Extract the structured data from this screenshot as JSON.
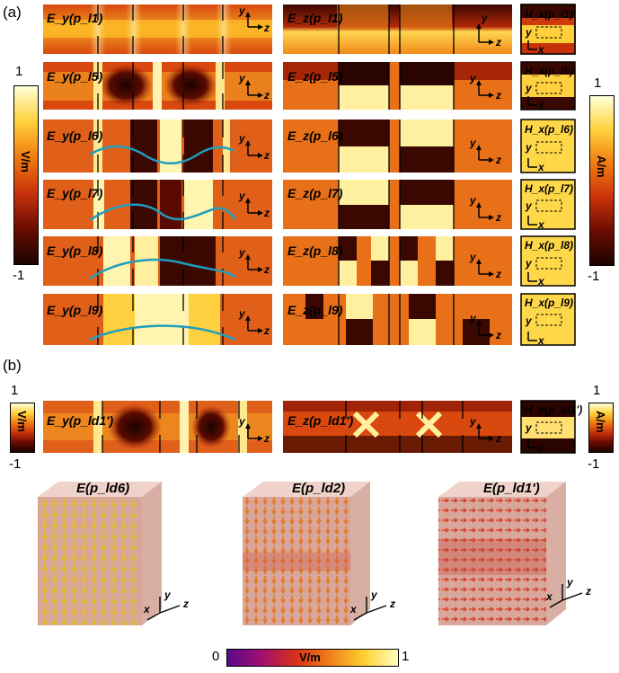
{
  "panels": {
    "a": "(a)",
    "b": "(b)"
  },
  "colorbar_left": {
    "max": "1",
    "min": "-1",
    "unit": "V/m"
  },
  "colorbar_right": {
    "max": "1",
    "min": "-1",
    "unit": "A/m"
  },
  "colorbar_b_left": {
    "max": "1",
    "min": "-1",
    "unit": "V/m"
  },
  "colorbar_b_right": {
    "max": "1",
    "min": "-1",
    "unit": "A/m"
  },
  "colorbar_bottom": {
    "min": "0",
    "max": "1",
    "unit": "V/m"
  },
  "rows_a": [
    {
      "ey": "E_y(p_l1)",
      "ez": "E_z(p_l1)",
      "hx": "H_x(p_l1)"
    },
    {
      "ey": "E_y(p_l5)",
      "ez": "E_z(p_l5)",
      "hx": "H_x(p_l5)"
    },
    {
      "ey": "E_y(p_l6)",
      "ez": "E_z(p_l6)",
      "hx": "H_x(p_l6)"
    },
    {
      "ey": "E_y(p_l7)",
      "ez": "E_z(p_l7)",
      "hx": "H_x(p_l7)"
    },
    {
      "ey": "E_y(p_l8)",
      "ez": "E_z(p_l8)",
      "hx": "H_x(p_l8)"
    },
    {
      "ey": "E_y(p_l9)",
      "ez": "E_z(p_l9)",
      "hx": "H_x(p_l9)"
    }
  ],
  "row_b": {
    "ey": "E_y(p_ld1')",
    "ez": "E_z(p_ld1')",
    "hx": "H_x(p_ld1')"
  },
  "axes": {
    "y": "y",
    "z": "z",
    "x": "x"
  },
  "cubes": [
    {
      "title": "E(p_ld6)"
    },
    {
      "title": "E(p_ld2)"
    },
    {
      "title": "E(p_ld1')"
    }
  ],
  "colors": {
    "cmap_dark": "#2a0500",
    "cmap_mid": "#c9320b",
    "cmap_bright": "#fff6c8",
    "wave": "#1f9dbd",
    "cube": "#d9a79a"
  }
}
